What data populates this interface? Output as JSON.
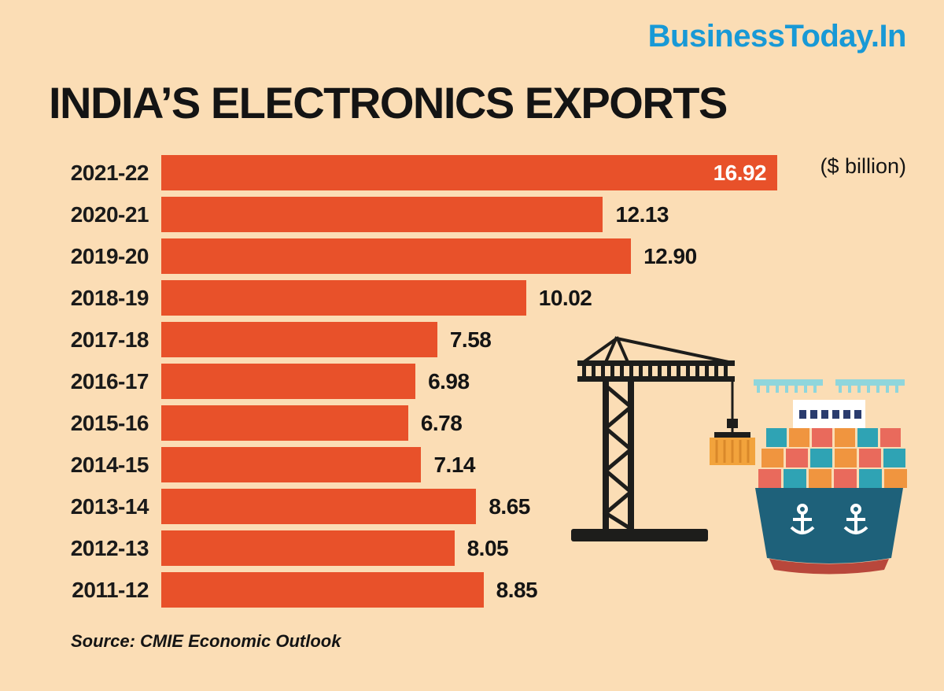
{
  "page": {
    "brand": "BusinessToday.In",
    "title": "INDIA’S ELECTRONICS EXPORTS",
    "unit_label": "($ billion)",
    "source": "Source: CMIE Economic Outlook"
  },
  "colors": {
    "background": "#FBDDB5",
    "bar": "#E8512A",
    "title_text": "#141414",
    "brand_blue": "#1899D6",
    "value_inside": "#FFFFFF",
    "value_outside": "#141414"
  },
  "icons": {
    "crane": "construction-crane-illustration",
    "ship": "container-cargo-ship-illustration"
  },
  "chart_data": {
    "type": "bar",
    "orientation": "horizontal",
    "title": "INDIA’S ELECTRONICS EXPORTS",
    "unit": "$ billion",
    "categories": [
      "2021-22",
      "2020-21",
      "2019-20",
      "2018-19",
      "2017-18",
      "2016-17",
      "2015-16",
      "2014-15",
      "2013-14",
      "2012-13",
      "2011-12"
    ],
    "values": [
      16.92,
      12.13,
      12.9,
      10.02,
      7.58,
      6.98,
      6.78,
      7.14,
      8.65,
      8.05,
      8.85
    ],
    "value_labels": [
      "16.92",
      "12.13",
      "12.90",
      "10.02",
      "7.58",
      "6.98",
      "6.78",
      "7.14",
      "8.65",
      "8.05",
      "8.85"
    ],
    "label_inside": [
      true,
      false,
      false,
      false,
      false,
      false,
      false,
      false,
      false,
      false,
      false
    ],
    "xlim": [
      0,
      17.5
    ],
    "grid": false,
    "legend": "none",
    "source": "CMIE Economic Outlook"
  }
}
